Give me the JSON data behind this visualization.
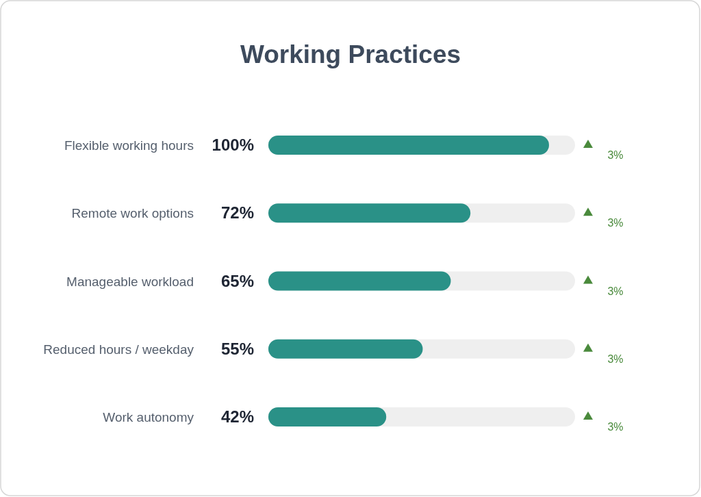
{
  "chart_data": {
    "type": "bar",
    "orientation": "horizontal",
    "title": "Working Practices",
    "categories": [
      "Flexible working hours",
      "Remote work options",
      "Manageable workload",
      "Reduced hours / weekday",
      "Work autonomy"
    ],
    "values": [
      100,
      72,
      65,
      55,
      42
    ],
    "color": "#2a9187",
    "value_labels": [
      "100%",
      "72%",
      "65%",
      "55%",
      "42%"
    ],
    "annotations": [
      "3%",
      "3%",
      "3%",
      "3%",
      "3%"
    ]
  }
}
